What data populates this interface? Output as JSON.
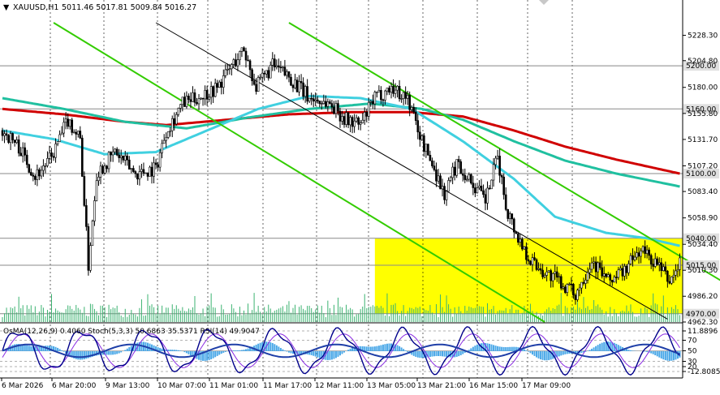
{
  "header": {
    "menu_glyph": "▼",
    "symbol": "XAUUSD,H1",
    "ohlc": "5011.46 5017.81 5009.84 5016.27"
  },
  "indicator_header": "OsMA(12,26,9) 0.4060  Stoch(5,3,3) 50.6863 35.5371  RSI(14) 49.9047",
  "colors": {
    "background": "#ffffff",
    "candle": "#000000",
    "volume": "#3cb371",
    "ma_red": "#d00000",
    "ma_teal": "#20c0a0",
    "ma_cyan": "#40d0e0",
    "channel": "#33cc00",
    "zone": "#ffff00",
    "osma": "#4aa8e8",
    "stoch_main": "#00008b",
    "stoch_signal": "#8a2be2",
    "level_line": "#888888",
    "price_tag_bg": "#e0e0e0"
  },
  "chart_data": {
    "type": "candlestick",
    "symbol": "XAUUSD",
    "timeframe": "H1",
    "price_axis": {
      "ylim": [
        4962.3,
        5240
      ],
      "ticks": [
        5228.3,
        5204.8,
        5180.0,
        5155.8,
        5131.7,
        5107.2,
        5083.4,
        5058.9,
        5034.4,
        5010.3,
        4986.2,
        4962.3
      ]
    },
    "x_tick_labels": [
      "6 Mar 2026",
      "6 Mar 20:00",
      "9 Mar 13:00",
      "10 Mar 07:00",
      "11 Mar 01:00",
      "11 Mar 17:00",
      "12 Mar 11:00",
      "13 Mar 05:00",
      "13 Mar 21:00",
      "16 Mar 15:00",
      "17 Mar 09:00"
    ],
    "horizontal_levels": [
      {
        "label": "5200.00",
        "value": 5200.0
      },
      {
        "label": "5160.00",
        "value": 5160.0
      },
      {
        "label": "5100.00",
        "value": 5100.0
      },
      {
        "label": "5040.00",
        "value": 5040.0
      },
      {
        "label": "5015.00",
        "value": 5015.0
      },
      {
        "label": "4970.00",
        "value": 4970.0
      }
    ],
    "zone": {
      "from": 4970.0,
      "to": 5040.0,
      "start_bar": 182,
      "end_bar": 331
    },
    "channel_lines": [
      {
        "from_bar": 25,
        "from_price": 5240,
        "to_bar": 265,
        "to_price": 4962.3
      },
      {
        "from_bar": 140,
        "from_price": 5240,
        "to_bar": 385,
        "to_price": 4962.3
      }
    ],
    "close_path": [
      {
        "bar": 0,
        "price": 5140
      },
      {
        "bar": 8,
        "price": 5125
      },
      {
        "bar": 16,
        "price": 5098
      },
      {
        "bar": 24,
        "price": 5115
      },
      {
        "bar": 32,
        "price": 5150
      },
      {
        "bar": 38,
        "price": 5132
      },
      {
        "bar": 42,
        "price": 5015
      },
      {
        "bar": 46,
        "price": 5100
      },
      {
        "bar": 55,
        "price": 5120
      },
      {
        "bar": 65,
        "price": 5100
      },
      {
        "bar": 75,
        "price": 5105
      },
      {
        "bar": 80,
        "price": 5140
      },
      {
        "bar": 88,
        "price": 5165
      },
      {
        "bar": 95,
        "price": 5170
      },
      {
        "bar": 105,
        "price": 5180
      },
      {
        "bar": 112,
        "price": 5200
      },
      {
        "bar": 118,
        "price": 5215
      },
      {
        "bar": 124,
        "price": 5180
      },
      {
        "bar": 132,
        "price": 5200
      },
      {
        "bar": 140,
        "price": 5190
      },
      {
        "bar": 150,
        "price": 5170
      },
      {
        "bar": 160,
        "price": 5165
      },
      {
        "bar": 168,
        "price": 5150
      },
      {
        "bar": 175,
        "price": 5145
      },
      {
        "bar": 182,
        "price": 5170
      },
      {
        "bar": 190,
        "price": 5180
      },
      {
        "bar": 198,
        "price": 5170
      },
      {
        "bar": 205,
        "price": 5130
      },
      {
        "bar": 212,
        "price": 5100
      },
      {
        "bar": 216,
        "price": 5080
      },
      {
        "bar": 222,
        "price": 5110
      },
      {
        "bar": 230,
        "price": 5090
      },
      {
        "bar": 236,
        "price": 5075
      },
      {
        "bar": 242,
        "price": 5115
      },
      {
        "bar": 246,
        "price": 5070
      },
      {
        "bar": 252,
        "price": 5040
      },
      {
        "bar": 258,
        "price": 5020
      },
      {
        "bar": 264,
        "price": 5010
      },
      {
        "bar": 272,
        "price": 5000
      },
      {
        "bar": 280,
        "price": 4988
      },
      {
        "bar": 288,
        "price": 5020
      },
      {
        "bar": 296,
        "price": 5000
      },
      {
        "bar": 304,
        "price": 5010
      },
      {
        "bar": 312,
        "price": 5030
      },
      {
        "bar": 320,
        "price": 5015
      },
      {
        "bar": 326,
        "price": 5000
      },
      {
        "bar": 331,
        "price": 5016
      }
    ],
    "moving_averages": [
      {
        "color": "red",
        "points": [
          {
            "bar": 0,
            "price": 5160
          },
          {
            "bar": 30,
            "price": 5155
          },
          {
            "bar": 60,
            "price": 5148
          },
          {
            "bar": 80,
            "price": 5145
          },
          {
            "bar": 110,
            "price": 5150
          },
          {
            "bar": 140,
            "price": 5155
          },
          {
            "bar": 170,
            "price": 5157
          },
          {
            "bar": 200,
            "price": 5157
          },
          {
            "bar": 225,
            "price": 5153
          },
          {
            "bar": 250,
            "price": 5140
          },
          {
            "bar": 275,
            "price": 5125
          },
          {
            "bar": 300,
            "price": 5113
          },
          {
            "bar": 331,
            "price": 5100
          }
        ]
      },
      {
        "color": "teal",
        "points": [
          {
            "bar": 0,
            "price": 5170
          },
          {
            "bar": 30,
            "price": 5160
          },
          {
            "bar": 60,
            "price": 5148
          },
          {
            "bar": 90,
            "price": 5142
          },
          {
            "bar": 120,
            "price": 5152
          },
          {
            "bar": 150,
            "price": 5160
          },
          {
            "bar": 180,
            "price": 5165
          },
          {
            "bar": 205,
            "price": 5160
          },
          {
            "bar": 225,
            "price": 5150
          },
          {
            "bar": 250,
            "price": 5130
          },
          {
            "bar": 275,
            "price": 5112
          },
          {
            "bar": 300,
            "price": 5100
          },
          {
            "bar": 331,
            "price": 5088
          }
        ]
      },
      {
        "color": "cyan",
        "points": [
          {
            "bar": 0,
            "price": 5140
          },
          {
            "bar": 25,
            "price": 5132
          },
          {
            "bar": 50,
            "price": 5118
          },
          {
            "bar": 75,
            "price": 5120
          },
          {
            "bar": 100,
            "price": 5140
          },
          {
            "bar": 125,
            "price": 5160
          },
          {
            "bar": 150,
            "price": 5172
          },
          {
            "bar": 175,
            "price": 5170
          },
          {
            "bar": 200,
            "price": 5160
          },
          {
            "bar": 225,
            "price": 5130
          },
          {
            "bar": 250,
            "price": 5095
          },
          {
            "bar": 270,
            "price": 5060
          },
          {
            "bar": 295,
            "price": 5045
          },
          {
            "bar": 315,
            "price": 5040
          },
          {
            "bar": 331,
            "price": 5033
          }
        ]
      }
    ],
    "indicator_levels": [
      {
        "label": "11.8896",
        "value": 11.8896
      },
      {
        "label": "70",
        "value": 70
      },
      {
        "label": "50",
        "value": 50
      },
      {
        "label": "30",
        "value": 30
      },
      {
        "label": "20",
        "value": 20
      },
      {
        "label": "-12.8085",
        "value": -12.8085
      }
    ]
  }
}
